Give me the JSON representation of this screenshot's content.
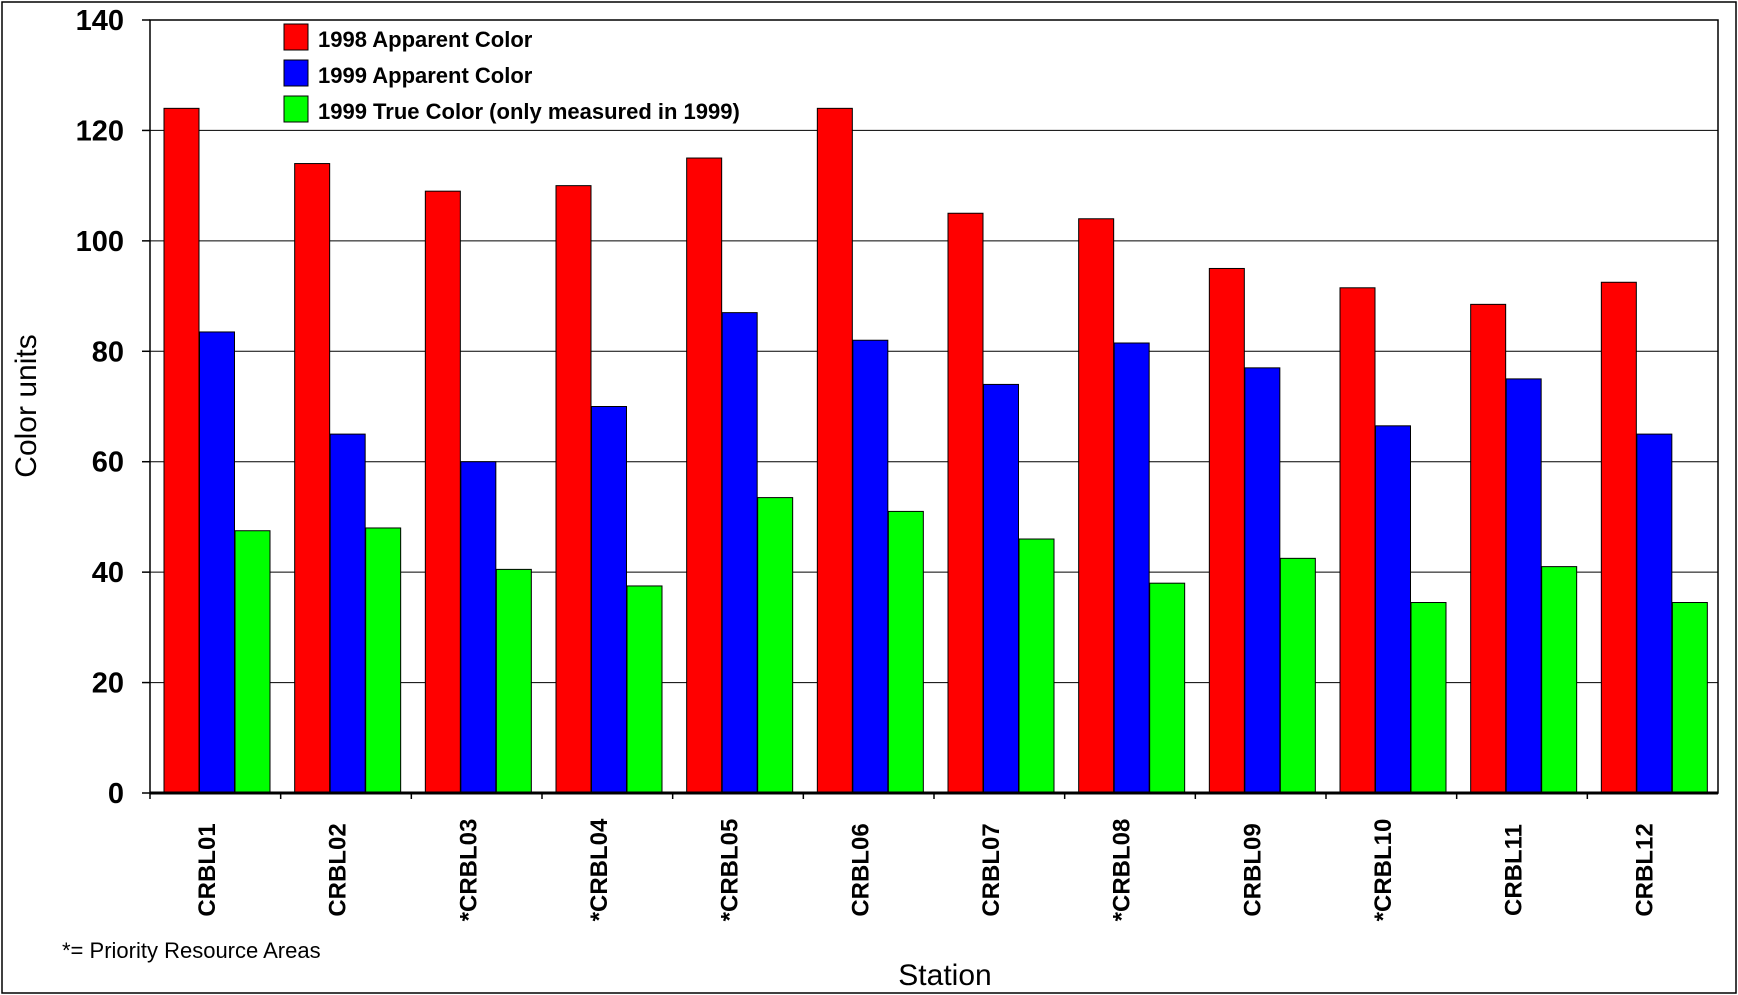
{
  "chart_data": {
    "type": "bar",
    "categories": [
      "CRBL01",
      "CRBL02",
      "*CRBL03",
      "*CRBL04",
      "*CRBL05",
      "CRBL06",
      "CRBL07",
      "*CRBL08",
      "CRBL09",
      "*CRBL10",
      "CRBL11",
      "CRBL12"
    ],
    "series": [
      {
        "name": "1998 Apparent Color",
        "color": "#ff0000",
        "values": [
          124,
          114,
          109,
          110,
          115,
          124,
          105,
          104,
          95,
          91.5,
          88.5,
          92.5
        ]
      },
      {
        "name": "1999 Apparent Color",
        "color": "#0000ff",
        "values": [
          83.5,
          65,
          60,
          70,
          87,
          82,
          74,
          81.5,
          77,
          66.5,
          75,
          65
        ]
      },
      {
        "name": "1999 True Color (only measured in 1999)",
        "color": "#00ff00",
        "values": [
          47.5,
          48,
          40.5,
          37.5,
          53.5,
          51,
          46,
          38,
          42.5,
          34.5,
          41,
          34.5
        ]
      }
    ],
    "xlabel": "Station",
    "ylabel": "Color units",
    "ylim": [
      0,
      140
    ],
    "yticks": [
      "0",
      "20",
      "40",
      "60",
      "80",
      "100",
      "120",
      "140"
    ],
    "grid": true,
    "legend_position": "top-left",
    "footnote": "*= Priority Resource Areas"
  }
}
